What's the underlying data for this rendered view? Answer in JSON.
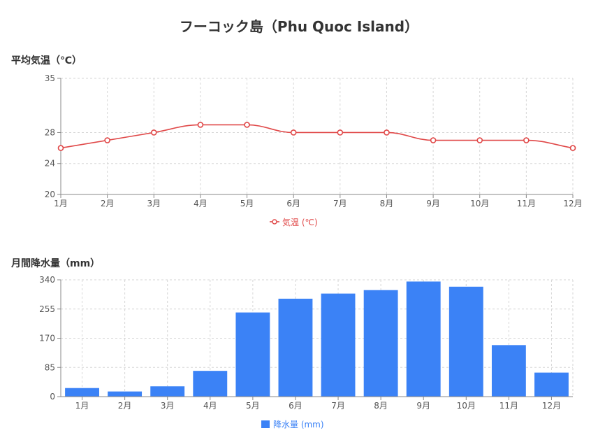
{
  "page": {
    "title": "フーコック島（Phu Quoc Island）",
    "temp_section_title": "平均気温（℃）",
    "rain_section_title": "月間降水量（mm）"
  },
  "chart_data": [
    {
      "type": "line",
      "categories": [
        "1月",
        "2月",
        "3月",
        "4月",
        "5月",
        "6月",
        "7月",
        "8月",
        "9月",
        "10月",
        "11月",
        "12月"
      ],
      "series": [
        {
          "name": "気温 (℃)",
          "values": [
            26,
            27,
            28,
            29,
            29,
            28,
            28,
            28,
            27,
            27,
            27,
            26
          ],
          "color": "#e04848"
        }
      ],
      "yticks": [
        20,
        24,
        28,
        35
      ],
      "ylim": [
        20,
        35
      ],
      "grid": true,
      "legend": "bottom"
    },
    {
      "type": "bar",
      "categories": [
        "1月",
        "2月",
        "3月",
        "4月",
        "5月",
        "6月",
        "7月",
        "8月",
        "9月",
        "10月",
        "11月",
        "12月"
      ],
      "series": [
        {
          "name": "降水量 (mm)",
          "values": [
            25,
            15,
            30,
            75,
            245,
            285,
            300,
            310,
            335,
            320,
            150,
            70
          ],
          "color": "#3b82f6"
        }
      ],
      "yticks": [
        0,
        85,
        170,
        255,
        340
      ],
      "ylim": [
        0,
        340
      ],
      "grid": true,
      "legend": "bottom"
    }
  ]
}
